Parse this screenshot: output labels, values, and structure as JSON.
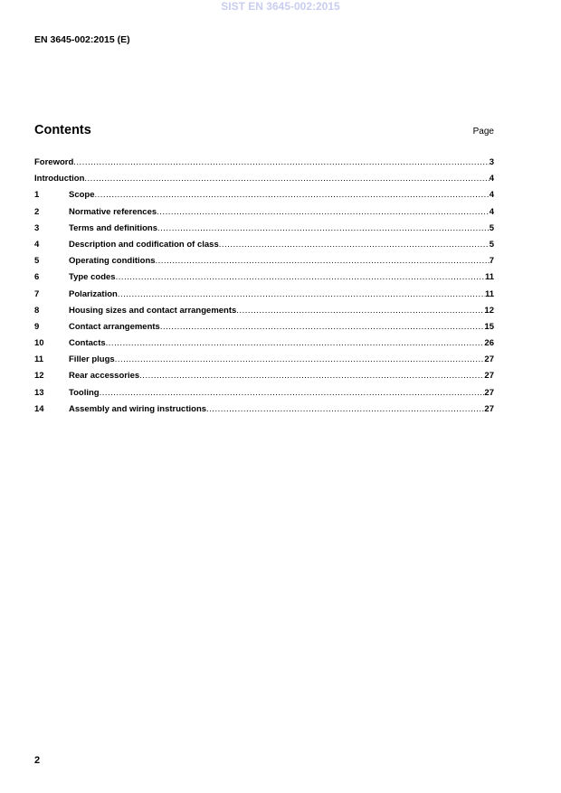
{
  "watermark": "SIST EN 3645-002:2015",
  "document_id": "EN 3645-002:2015 (E)",
  "contents": {
    "title": "Contents",
    "page_label": "Page",
    "entries": [
      {
        "num": "",
        "label": "Foreword",
        "page": "3"
      },
      {
        "num": "",
        "label": "Introduction",
        "page": "4"
      },
      {
        "num": "1",
        "label": "Scope",
        "page": "4"
      },
      {
        "num": "2",
        "label": "Normative references",
        "page": "4"
      },
      {
        "num": "3",
        "label": "Terms and definitions",
        "page": "5"
      },
      {
        "num": "4",
        "label": "Description and codification of class",
        "page": "5"
      },
      {
        "num": "5",
        "label": "Operating conditions",
        "page": "7"
      },
      {
        "num": "6",
        "label": "Type codes",
        "page": "11"
      },
      {
        "num": "7",
        "label": "Polarization",
        "page": "11"
      },
      {
        "num": "8",
        "label": "Housing sizes and contact arrangements",
        "page": "12"
      },
      {
        "num": "9",
        "label": "Contact arrangements",
        "page": "15"
      },
      {
        "num": "10",
        "label": "Contacts",
        "page": "26"
      },
      {
        "num": "11",
        "label": "Filler plugs",
        "page": "27"
      },
      {
        "num": "12",
        "label": "Rear accessories",
        "page": "27"
      },
      {
        "num": "13",
        "label": "Tooling",
        "page": "27"
      },
      {
        "num": "14",
        "label": "Assembly and wiring instructions",
        "page": "27"
      }
    ]
  },
  "page_number": "2"
}
